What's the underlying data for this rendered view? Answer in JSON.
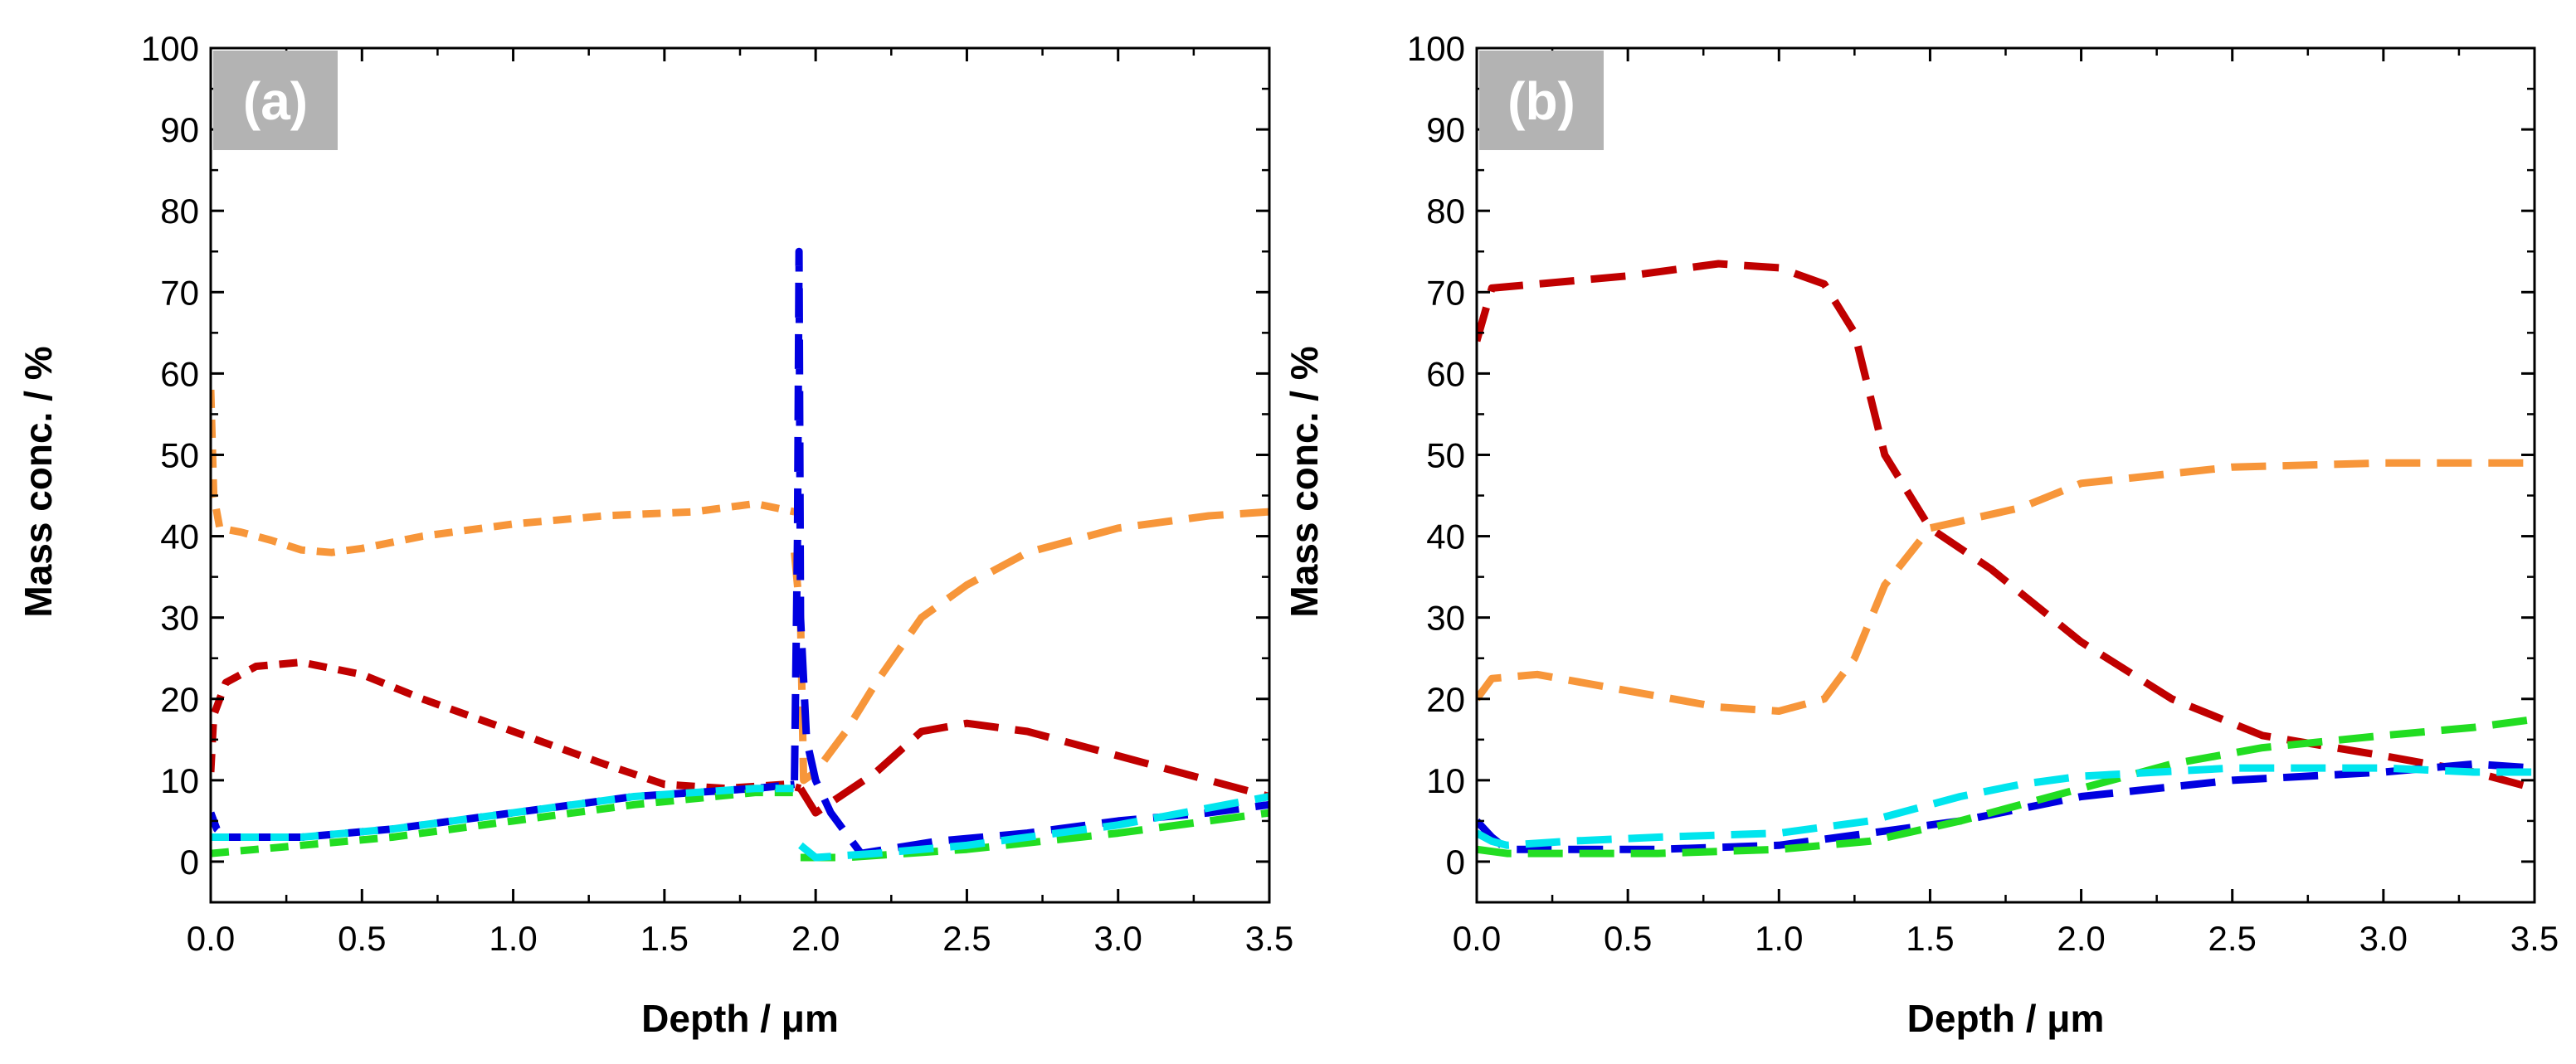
{
  "chart_data": [
    {
      "type": "line",
      "panel_label": "(a)",
      "xlabel": "Depth / μm",
      "ylabel": "Mass conc. / %",
      "xlim": [
        0,
        3.5
      ],
      "ylim": [
        -5,
        100
      ],
      "xticks": [
        "0.0",
        "0.5",
        "1.0",
        "1.5",
        "2.0",
        "2.5",
        "3.0",
        "3.5"
      ],
      "yticks": [
        "0",
        "10",
        "20",
        "30",
        "40",
        "50",
        "60",
        "70",
        "80",
        "90",
        "100"
      ],
      "series": [
        {
          "name": "orange",
          "color": "#F7963A",
          "dash": "short",
          "x": [
            0.0,
            0.01,
            0.03,
            0.1,
            0.2,
            0.3,
            0.4,
            0.5,
            0.7,
            1.0,
            1.3,
            1.6,
            1.8,
            1.93
          ],
          "y": [
            58,
            45,
            41,
            40.5,
            39.5,
            38.3,
            38,
            38.5,
            40,
            41.5,
            42.5,
            43,
            44,
            43
          ]
        },
        {
          "name": "orange",
          "color": "#F7963A",
          "dash": "long",
          "x": [
            1.93,
            1.95,
            1.96,
            2.0,
            2.1,
            2.2,
            2.35,
            2.5,
            2.7,
            3.0,
            3.3,
            3.5
          ],
          "y": [
            38,
            30,
            10,
            11,
            16,
            22,
            30,
            34,
            38,
            41,
            42.5,
            43
          ]
        },
        {
          "name": "red",
          "color": "#C00000",
          "dash": "short",
          "x": [
            0.0,
            0.01,
            0.05,
            0.15,
            0.3,
            0.5,
            0.7,
            1.0,
            1.3,
            1.5,
            1.7,
            1.9,
            1.95
          ],
          "y": [
            11,
            18,
            22,
            24,
            24.5,
            23,
            20,
            16,
            12,
            9.5,
            9,
            9.5,
            9
          ]
        },
        {
          "name": "red",
          "color": "#C00000",
          "dash": "long",
          "x": [
            1.95,
            2.0,
            2.2,
            2.35,
            2.5,
            2.7,
            3.0,
            3.3,
            3.5
          ],
          "y": [
            9,
            6,
            11,
            16,
            17,
            16,
            13,
            10,
            8
          ]
        },
        {
          "name": "blue",
          "color": "#0000E0",
          "dash": "short",
          "x": [
            0.0,
            0.02,
            0.05,
            0.3,
            0.6,
            1.0,
            1.4,
            1.8,
            1.93
          ],
          "y": [
            6,
            4,
            3,
            3,
            4,
            6,
            8,
            9,
            9.5
          ]
        },
        {
          "name": "blue",
          "color": "#0000E0",
          "dash": "long",
          "x": [
            1.93,
            1.94,
            1.945,
            1.95,
            1.97,
            2.0,
            2.05,
            2.15,
            2.4,
            2.7,
            3.0,
            3.3,
            3.5
          ],
          "y": [
            10,
            40,
            75,
            30,
            15,
            10,
            6,
            1,
            2.5,
            3.5,
            5,
            6,
            7
          ]
        },
        {
          "name": "green",
          "color": "#22DD22",
          "dash": "short",
          "x": [
            0.0,
            0.3,
            0.6,
            1.0,
            1.4,
            1.8,
            1.93
          ],
          "y": [
            1,
            2,
            3,
            5,
            7,
            8.5,
            8.5
          ]
        },
        {
          "name": "green",
          "color": "#22DD22",
          "dash": "long",
          "x": [
            1.95,
            2.1,
            2.5,
            3.0,
            3.5
          ],
          "y": [
            0.5,
            0.5,
            1.5,
            3.5,
            6
          ]
        },
        {
          "name": "cyan",
          "color": "#00E5EE",
          "dash": "short",
          "x": [
            0.0,
            0.3,
            0.6,
            1.0,
            1.4,
            1.8,
            1.93
          ],
          "y": [
            3,
            3,
            4,
            6,
            8,
            9,
            9
          ]
        },
        {
          "name": "cyan",
          "color": "#00E5EE",
          "dash": "long",
          "x": [
            1.95,
            2.0,
            2.2,
            2.5,
            3.0,
            3.5
          ],
          "y": [
            2,
            0.5,
            1,
            2,
            4.5,
            8
          ]
        }
      ]
    },
    {
      "type": "line",
      "panel_label": "(b)",
      "xlabel": "Depth / μm",
      "ylabel": "Mass conc. / %",
      "xlim": [
        0,
        3.5
      ],
      "ylim": [
        -5,
        100
      ],
      "xticks": [
        "0.0",
        "0.5",
        "1.0",
        "1.5",
        "2.0",
        "2.5",
        "3.0",
        "3.5"
      ],
      "yticks": [
        "0",
        "10",
        "20",
        "30",
        "40",
        "50",
        "60",
        "70",
        "80",
        "90",
        "100"
      ],
      "series": [
        {
          "name": "red",
          "color": "#C00000",
          "dash": "long",
          "x": [
            0.0,
            0.05,
            0.2,
            0.5,
            0.8,
            1.0,
            1.15,
            1.25,
            1.35,
            1.5,
            1.7,
            2.0,
            2.3,
            2.6,
            3.0,
            3.3,
            3.5
          ],
          "y": [
            64,
            70.5,
            71,
            72,
            73.5,
            73,
            71,
            65,
            50,
            41,
            36,
            27,
            20,
            15.5,
            13,
            11,
            9
          ]
        },
        {
          "name": "orange",
          "color": "#F7963A",
          "dash": "long",
          "x": [
            0.0,
            0.05,
            0.2,
            0.5,
            0.8,
            1.0,
            1.15,
            1.25,
            1.35,
            1.5,
            1.8,
            2.0,
            2.5,
            3.0,
            3.5
          ],
          "y": [
            20,
            22.5,
            23,
            21,
            19,
            18.5,
            20,
            25,
            34,
            41,
            43.5,
            46.5,
            48.5,
            49,
            49
          ]
        },
        {
          "name": "blue",
          "color": "#0000E0",
          "dash": "long",
          "x": [
            0.0,
            0.05,
            0.1,
            0.3,
            0.6,
            1.0,
            1.3,
            1.6,
            2.0,
            2.5,
            3.0,
            3.3,
            3.5
          ],
          "y": [
            5,
            3,
            1.5,
            1.5,
            1.5,
            2,
            3.5,
            5,
            8,
            10,
            11,
            12,
            11.5
          ]
        },
        {
          "name": "green",
          "color": "#22DD22",
          "dash": "long",
          "x": [
            0.0,
            0.1,
            0.3,
            0.6,
            1.0,
            1.3,
            1.6,
            2.0,
            2.3,
            2.6,
            3.0,
            3.3,
            3.5
          ],
          "y": [
            1.5,
            1,
            1,
            1,
            1.5,
            2.5,
            5,
            9,
            12,
            14,
            15.5,
            16.5,
            17.5
          ]
        },
        {
          "name": "cyan",
          "color": "#00E5EE",
          "dash": "long",
          "x": [
            0.0,
            0.05,
            0.1,
            0.3,
            0.6,
            1.0,
            1.3,
            1.6,
            1.8,
            2.0,
            2.5,
            3.0,
            3.3,
            3.5
          ],
          "y": [
            3.5,
            2.5,
            2,
            2.5,
            3,
            3.5,
            5,
            8,
            9.5,
            10.5,
            11.5,
            11.5,
            11,
            11
          ]
        }
      ]
    }
  ]
}
